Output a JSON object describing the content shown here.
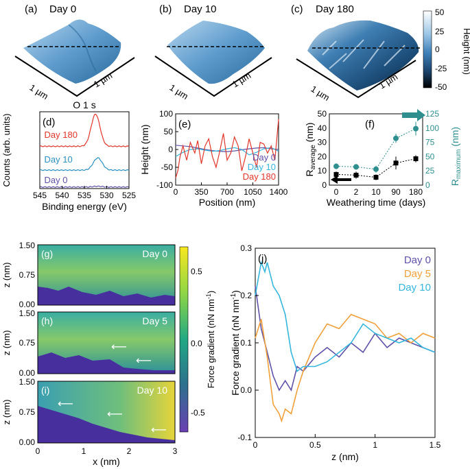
{
  "figure": {
    "panel_a": {
      "label": "(a)",
      "title": "Day 0",
      "axis1": "1 µm",
      "axis2": "1 µm"
    },
    "panel_b": {
      "label": "(b)",
      "title": "Day 10",
      "axis1": "1 µm",
      "axis2": "1 µm"
    },
    "panel_c": {
      "label": "(c)",
      "title": "Day 180",
      "axis1": "1 µm",
      "axis2": "1 µm"
    },
    "height_colorbar": {
      "label": "Height (nm)",
      "ticks": [
        "50",
        "25",
        "0",
        "-25",
        "-50"
      ]
    },
    "force_colorbar": {
      "label": "Force gradient (nN nm",
      "label_sup": "-1",
      "label_end": ")",
      "ticks": [
        "0.5",
        "0.0",
        "-0.5"
      ]
    },
    "maps": {
      "g": {
        "label": "(g)",
        "day": "Day 0"
      },
      "h": {
        "label": "(h)",
        "day": "Day 5"
      },
      "i": {
        "label": "(i)",
        "day": "Day 10"
      },
      "ylabel": "z (nm)",
      "xlabel": "x (nm)",
      "yticks": [
        "1.50",
        "0.75",
        "0.00"
      ],
      "xticks": [
        "0",
        "1",
        "2",
        "3"
      ]
    },
    "colors": {
      "surface_light": "#a9cde9",
      "surface_dark": "#2a6a9c",
      "day0_purple": "#5d51a8",
      "day5_orange": "#f0a03a",
      "day10_cyan": "#36b6dd",
      "red": "#e2352a",
      "teal": "#2f8f8f"
    }
  },
  "chart_data": [
    {
      "id": "d",
      "type": "line",
      "label": "(d)",
      "title": "O 1 s",
      "xlabel": "Binding energy (eV)",
      "ylabel": "Counts (arb. units)",
      "xlim": [
        545,
        525
      ],
      "xticks": [
        "545",
        "540",
        "535",
        "530",
        "525"
      ],
      "series": [
        {
          "name": "Day 180",
          "color": "#e2352a",
          "peak": 532.5,
          "baseline": 0.55,
          "height": 0.42
        },
        {
          "name": "Day 10",
          "color": "#2b8fc0",
          "peak": 532.0,
          "baseline": 0.24,
          "height": 0.16
        },
        {
          "name": "Day 0",
          "color": "#5d51a8",
          "peak": 532.0,
          "baseline": 0.02,
          "height": 0.01
        }
      ]
    },
    {
      "id": "e",
      "type": "line",
      "label": "(e)",
      "xlabel": "Position (nm)",
      "ylabel": "Height (nm)",
      "xlim": [
        0,
        1400
      ],
      "ylim": [
        -100,
        100
      ],
      "xticks": [
        "0",
        "350",
        "700",
        "1050",
        "1400"
      ],
      "yticks": [
        "100",
        "50",
        "0",
        "-50",
        "-100"
      ],
      "series": [
        {
          "name": "Day 0",
          "color": "#5d51a8",
          "x": [
            0,
            100,
            200,
            300,
            400,
            500,
            600,
            700,
            800,
            900,
            1000,
            1100,
            1200,
            1300,
            1400
          ],
          "y": [
            12,
            10,
            8,
            4,
            0,
            -3,
            -5,
            -6,
            -4,
            -1,
            2,
            4,
            5,
            2,
            0
          ]
        },
        {
          "name": "Day 10",
          "color": "#36b6dd",
          "x": [
            0,
            100,
            200,
            300,
            400,
            500,
            600,
            700,
            800,
            900,
            1000,
            1100,
            1200,
            1300,
            1400
          ],
          "y": [
            -20,
            -8,
            0,
            2,
            -2,
            -5,
            -3,
            2,
            5,
            0,
            -15,
            -8,
            2,
            5,
            -5
          ]
        },
        {
          "name": "Day 180",
          "color": "#e2352a",
          "x": [
            0,
            30,
            60,
            100,
            150,
            200,
            260,
            300,
            350,
            400,
            450,
            500,
            550,
            600,
            650,
            700,
            750,
            800,
            850,
            900,
            950,
            1000,
            1050,
            1100,
            1150,
            1200,
            1250,
            1300,
            1350,
            1380,
            1400
          ],
          "y": [
            -80,
            -60,
            -20,
            10,
            -30,
            20,
            -10,
            25,
            -40,
            10,
            30,
            -20,
            -50,
            -5,
            45,
            -30,
            -10,
            35,
            10,
            -60,
            -20,
            30,
            -10,
            -50,
            20,
            15,
            -10,
            10,
            -30,
            40,
            85
          ]
        }
      ]
    },
    {
      "id": "f",
      "type": "scatter",
      "label": "(f)",
      "xlabel": "Weathering time (days)",
      "ylabel_left": "R",
      "ylabel_left_sub": "average",
      "ylabel_left_unit": " (nm)",
      "ylabel_right": "R",
      "ylabel_right_sub": "maximum",
      "ylabel_right_unit": " (nm)",
      "categories": [
        "0",
        "2",
        "10",
        "90",
        "180"
      ],
      "left_yticks": [
        "50",
        "40",
        "30",
        "20",
        "10",
        "0"
      ],
      "right_yticks": [
        "125",
        "100",
        "75",
        "50",
        "25",
        "0"
      ],
      "ylim_left": [
        0,
        50
      ],
      "ylim_right": [
        0,
        125
      ],
      "series": [
        {
          "name": "R_average",
          "color": "#000000",
          "values": [
            7.5,
            7.0,
            5.5,
            15.5,
            18.5
          ],
          "errors": [
            2.0,
            2.5,
            2.0,
            4.5,
            2.5
          ]
        },
        {
          "name": "R_maximum",
          "color": "#2f8f8f",
          "values": [
            33,
            32,
            28,
            82,
            99
          ],
          "errors": [
            5,
            5,
            6,
            8,
            12
          ]
        }
      ]
    },
    {
      "id": "j",
      "type": "line",
      "label": "(j)",
      "xlabel": "z (nm)",
      "ylabel": "Force gradient (nN nm",
      "ylabel_sup": "-1",
      "ylabel_end": ")",
      "xlim": [
        0,
        1.5
      ],
      "ylim": [
        -0.1,
        0.3
      ],
      "xticks": [
        "0",
        "0.5",
        "1",
        "1.5"
      ],
      "yticks": [
        "0.3",
        "0.2",
        "0.1",
        "0.0",
        "-0.1"
      ],
      "series": [
        {
          "name": "Day 0",
          "color": "#5d51a8",
          "x": [
            0,
            0.05,
            0.1,
            0.15,
            0.2,
            0.25,
            0.3,
            0.35,
            0.4,
            0.5,
            0.6,
            0.7,
            0.8,
            0.9,
            1.0,
            1.1,
            1.2,
            1.3,
            1.4,
            1.5
          ],
          "y": [
            0.22,
            0.13,
            0.08,
            0.03,
            0.0,
            0.02,
            0.0,
            0.05,
            0.04,
            0.07,
            0.09,
            0.07,
            0.1,
            0.08,
            0.12,
            0.09,
            0.11,
            0.1,
            0.09,
            0.08
          ]
        },
        {
          "name": "Day 5",
          "color": "#f0a03a",
          "x": [
            0,
            0.05,
            0.1,
            0.15,
            0.2,
            0.22,
            0.25,
            0.3,
            0.35,
            0.4,
            0.5,
            0.6,
            0.7,
            0.8,
            0.9,
            1.0,
            1.1,
            1.2,
            1.3,
            1.4,
            1.5
          ],
          "y": [
            0.11,
            0.15,
            0.07,
            -0.03,
            -0.05,
            -0.065,
            -0.04,
            -0.05,
            0.0,
            0.04,
            0.1,
            0.14,
            0.13,
            0.16,
            0.15,
            0.14,
            0.11,
            0.12,
            0.1,
            0.12,
            0.11
          ]
        },
        {
          "name": "Day 10",
          "color": "#36b6dd",
          "x": [
            0,
            0.05,
            0.08,
            0.1,
            0.15,
            0.2,
            0.25,
            0.3,
            0.35,
            0.4,
            0.5,
            0.6,
            0.7,
            0.8,
            0.9,
            1.0,
            1.1,
            1.2,
            1.3,
            1.4,
            1.5
          ],
          "y": [
            0.2,
            0.27,
            0.25,
            0.27,
            0.22,
            0.2,
            0.16,
            0.08,
            0.04,
            0.05,
            0.05,
            0.06,
            0.08,
            0.1,
            0.14,
            0.12,
            0.11,
            0.1,
            0.11,
            0.09,
            0.08
          ]
        }
      ]
    }
  ]
}
